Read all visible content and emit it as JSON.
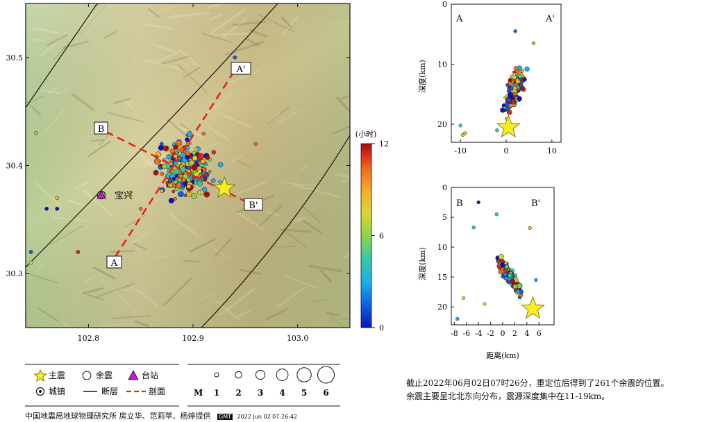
{
  "map": {
    "lat_ticks": [
      {
        "value": 30.5,
        "label": "30.5"
      },
      {
        "value": 30.4,
        "label": "30.4"
      },
      {
        "value": 30.3,
        "label": "30.3"
      }
    ],
    "lon_ticks": [
      {
        "value": 102.8,
        "label": "102.8"
      },
      {
        "value": 102.9,
        "label": "102.9"
      },
      {
        "value": 103.0,
        "label": "103.0"
      }
    ],
    "extent": {
      "lon_min": 102.74,
      "lon_max": 103.05,
      "lat_min": 30.25,
      "lat_max": 30.55
    },
    "town_label": "宝兴",
    "profile_labels": {
      "A": "A",
      "A_prime": "A'",
      "B": "B",
      "B_prime": "B'"
    }
  },
  "colorbar": {
    "title": "(小时)",
    "ticks": [
      {
        "value": 12,
        "label": "12"
      },
      {
        "value": 6,
        "label": "6"
      },
      {
        "value": 0,
        "label": "0"
      }
    ],
    "range": [
      0,
      12
    ],
    "colors": [
      "#0a14b8",
      "#0b5fe0",
      "#1cb0e8",
      "#3cc9a0",
      "#8fd24a",
      "#d9d633",
      "#f4b02a",
      "#ee6f1e",
      "#d92a18",
      "#a50e12"
    ]
  },
  "profile_AA": {
    "left_label": "A",
    "right_label": "A'",
    "ylabel": "深度(km)",
    "x_ticks": [
      {
        "value": -10,
        "label": "-10"
      },
      {
        "value": 0,
        "label": "0"
      },
      {
        "value": 10,
        "label": "10"
      }
    ],
    "y_ticks": [
      {
        "value": 0,
        "label": "0"
      },
      {
        "value": 10,
        "label": "10"
      },
      {
        "value": 20,
        "label": "20"
      }
    ],
    "xlim": [
      -12,
      12
    ],
    "ylim": [
      0,
      23
    ]
  },
  "profile_BB": {
    "left_label": "B",
    "right_label": "B'",
    "ylabel": "深度(km)",
    "xlabel": "距离(km)",
    "x_ticks": [
      {
        "value": -8,
        "label": "-8"
      },
      {
        "value": -6,
        "label": "-6"
      },
      {
        "value": -4,
        "label": "-4"
      },
      {
        "value": -2,
        "label": "-2"
      },
      {
        "value": 0,
        "label": "0"
      },
      {
        "value": 2,
        "label": "2"
      },
      {
        "value": 4,
        "label": "4"
      },
      {
        "value": 6,
        "label": "6"
      }
    ],
    "y_ticks": [
      {
        "value": 0,
        "label": "0"
      },
      {
        "value": 5,
        "label": "5"
      },
      {
        "value": 10,
        "label": "10"
      },
      {
        "value": 15,
        "label": "15"
      },
      {
        "value": 20,
        "label": "20"
      }
    ],
    "xlim": [
      -8.5,
      8.5
    ],
    "ylim": [
      0,
      23
    ]
  },
  "mainshock": {
    "lon": 102.93,
    "lat": 30.379,
    "aa_x": 0.5,
    "aa_depth": 20.5,
    "bb_x": 5.0,
    "bb_depth": 20.3
  },
  "legend": {
    "mainshock": "主震",
    "aftershock": "余震",
    "station": "台站",
    "town": "城镇",
    "fault": "断层",
    "profile": "剖面",
    "magnitude_label": "M",
    "magnitudes": [
      "1",
      "2",
      "3",
      "4",
      "5",
      "6"
    ]
  },
  "caption": {
    "line1": "截止2022年06月02日07时26分，重定位后得到了261个余震的位置。",
    "line2": "余震主要呈北北东向分布，震源深度集中在11-19km。"
  },
  "credit": {
    "text": "中国地震局地球物理研究所  房立华、范莉苹、杨婷提供",
    "gmt_stamp": "GMT",
    "timestamp": "2022 Jun 02 07:26:42"
  }
}
